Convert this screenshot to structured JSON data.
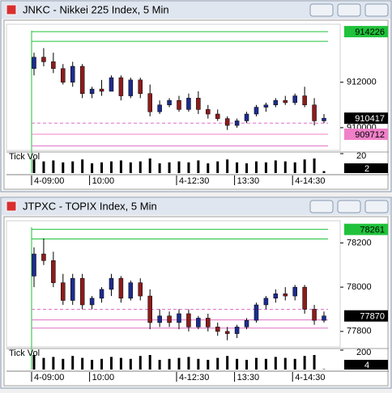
{
  "chart_data": [
    {
      "type": "candlestick",
      "title": "JNKC - Nikkei 225 Index, 5 Min",
      "categories": [
        "4-09:00",
        null,
        null,
        null,
        null,
        null,
        "10:00",
        null,
        null,
        null,
        null,
        null,
        null,
        null,
        null,
        "4-12:30",
        null,
        null,
        null,
        null,
        null,
        "13:30",
        null,
        null,
        null,
        null,
        null,
        "4-14:30",
        null,
        null,
        null
      ],
      "ohlc": [
        [
          912600,
          913300,
          912300,
          913100
        ],
        [
          913100,
          913500,
          912700,
          912900
        ],
        [
          912900,
          913300,
          912400,
          912600
        ],
        [
          912600,
          912800,
          911900,
          912000
        ],
        [
          912000,
          912900,
          911800,
          912700
        ],
        [
          912700,
          912800,
          911300,
          911500
        ],
        [
          911500,
          911800,
          911300,
          911700
        ],
        [
          911700,
          912100,
          911400,
          911600
        ],
        [
          911600,
          912300,
          911600,
          912200
        ],
        [
          912200,
          912300,
          911200,
          911400
        ],
        [
          911400,
          912200,
          911300,
          912100
        ],
        [
          912100,
          912200,
          911300,
          911500
        ],
        [
          911500,
          911900,
          910500,
          910700
        ],
        [
          910700,
          911200,
          910600,
          911000
        ],
        [
          911000,
          911300,
          910900,
          911200
        ],
        [
          911200,
          911400,
          910700,
          910800
        ],
        [
          910800,
          911500,
          910700,
          911300
        ],
        [
          911300,
          911600,
          910600,
          910800
        ],
        [
          910800,
          911000,
          910400,
          910600
        ],
        [
          910600,
          910800,
          910300,
          910400
        ],
        [
          910400,
          910500,
          909900,
          910100
        ],
        [
          910100,
          910400,
          910000,
          910300
        ],
        [
          910300,
          910700,
          910200,
          910600
        ],
        [
          910600,
          911000,
          910500,
          910900
        ],
        [
          910900,
          911100,
          910700,
          911000
        ],
        [
          911000,
          911300,
          910900,
          911200
        ],
        [
          911200,
          911400,
          911000,
          911100
        ],
        [
          911100,
          911500,
          911000,
          911400
        ],
        [
          911400,
          911800,
          910900,
          911000
        ],
        [
          911000,
          911300,
          910100,
          910300
        ],
        [
          910300,
          910600,
          910200,
          910417
        ]
      ],
      "up_color": "#1c2c8c",
      "down_color": "#8c1c1c",
      "ylim": [
        909000,
        914550
      ],
      "yticks": [
        910000,
        912000
      ],
      "levels": [
        {
          "value": 914226,
          "color": "#1fc23a",
          "dashed": false,
          "labeled": true
        },
        {
          "value": 913800,
          "color": "#1fc23a",
          "dashed": false,
          "labeled": false
        },
        {
          "value": 910200,
          "color": "#e070c8",
          "dashed": true,
          "labeled": false
        },
        {
          "value": 909712,
          "color": "#f080c8",
          "dashed": false,
          "labeled": true
        },
        {
          "value": 909200,
          "color": "#e070c8",
          "dashed": false,
          "labeled": false
        }
      ],
      "last_price_color": "#000000",
      "volume_label": "Tick Vol",
      "volume": [
        14,
        12,
        13,
        11,
        12,
        14,
        10,
        11,
        12,
        13,
        11,
        12,
        15,
        10,
        11,
        12,
        11,
        13,
        10,
        12,
        14,
        11,
        10,
        12,
        11,
        13,
        12,
        11,
        14,
        15,
        2
      ],
      "volume_ylim": [
        0,
        20
      ],
      "volume_yticks": [
        20
      ]
    },
    {
      "type": "candlestick",
      "title": "JTPXC - TOPIX Index, 5 Min",
      "categories": [
        "4-09:00",
        null,
        null,
        null,
        null,
        null,
        "10:00",
        null,
        null,
        null,
        null,
        null,
        null,
        null,
        null,
        "4-12:30",
        null,
        null,
        null,
        null,
        null,
        "13:30",
        null,
        null,
        null,
        null,
        null,
        "4-14:30",
        null,
        null,
        null
      ],
      "ohlc": [
        [
          78050,
          78180,
          78000,
          78150
        ],
        [
          78150,
          78220,
          78100,
          78120
        ],
        [
          78120,
          78160,
          78000,
          78020
        ],
        [
          78020,
          78060,
          77920,
          77940
        ],
        [
          77940,
          78060,
          77920,
          78040
        ],
        [
          78040,
          78060,
          77900,
          77920
        ],
        [
          77920,
          77960,
          77900,
          77950
        ],
        [
          77950,
          78000,
          77930,
          77990
        ],
        [
          77990,
          78060,
          77960,
          78040
        ],
        [
          78040,
          78050,
          77930,
          77950
        ],
        [
          77950,
          78030,
          77940,
          78020
        ],
        [
          78020,
          78040,
          77940,
          77960
        ],
        [
          77960,
          77990,
          77810,
          77840
        ],
        [
          77840,
          77900,
          77820,
          77870
        ],
        [
          77870,
          77890,
          77820,
          77840
        ],
        [
          77840,
          77900,
          77810,
          77880
        ],
        [
          77880,
          77900,
          77800,
          77820
        ],
        [
          77820,
          77870,
          77810,
          77860
        ],
        [
          77860,
          77880,
          77800,
          77820
        ],
        [
          77820,
          77840,
          77780,
          77800
        ],
        [
          77800,
          77820,
          77760,
          77790
        ],
        [
          77790,
          77830,
          77770,
          77820
        ],
        [
          77820,
          77860,
          77810,
          77850
        ],
        [
          77850,
          77930,
          77840,
          77920
        ],
        [
          77920,
          77960,
          77900,
          77950
        ],
        [
          77950,
          77990,
          77930,
          77970
        ],
        [
          77970,
          78000,
          77940,
          77960
        ],
        [
          77960,
          78010,
          77940,
          78000
        ],
        [
          78000,
          78010,
          77880,
          77900
        ],
        [
          77900,
          77920,
          77830,
          77850
        ],
        [
          77850,
          77890,
          77840,
          77870
        ]
      ],
      "up_color": "#1c2c8c",
      "down_color": "#8c1c1c",
      "ylim": [
        77730,
        78300
      ],
      "yticks": [
        77800,
        78000,
        78200
      ],
      "levels": [
        {
          "value": 78261,
          "color": "#1fc23a",
          "dashed": false,
          "labeled": true
        },
        {
          "value": 78218,
          "color": "#1fc23a",
          "dashed": false,
          "labeled": false
        },
        {
          "value": 77900,
          "color": "#e070c8",
          "dashed": true,
          "labeled": false
        },
        {
          "value": 77852,
          "color": "#e070c8",
          "dashed": false,
          "labeled": false
        },
        {
          "value": 77815,
          "color": "#e070c8",
          "dashed": false,
          "labeled": false
        }
      ],
      "last_price_color": "#000000",
      "volume_label": "Tick Vol",
      "volume": [
        150,
        120,
        130,
        110,
        140,
        120,
        100,
        110,
        130,
        120,
        110,
        140,
        150,
        100,
        110,
        120,
        130,
        110,
        100,
        120,
        140,
        110,
        100,
        120,
        110,
        130,
        120,
        110,
        140,
        150,
        4
      ],
      "volume_ylim": [
        0,
        200
      ],
      "volume_yticks": [
        200
      ]
    }
  ]
}
